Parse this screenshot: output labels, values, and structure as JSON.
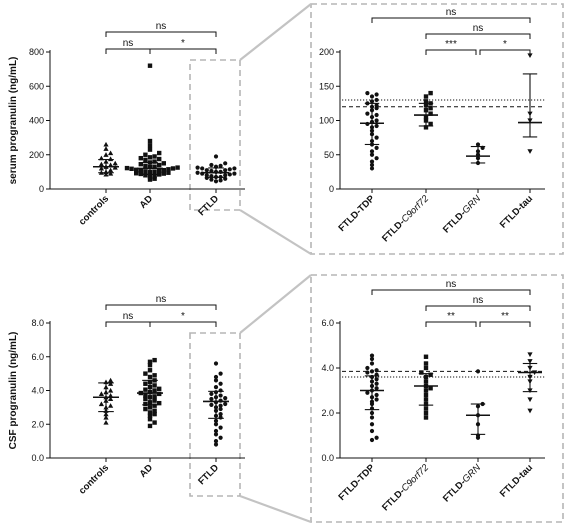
{
  "chart_data": [
    {
      "id": "A",
      "type": "scatter",
      "ylabel": "serum progranulin (ng/mL)",
      "ylim": [
        0,
        800
      ],
      "yticks": [
        0,
        200,
        400,
        600,
        800
      ],
      "categories": [
        "controls",
        "AD",
        "FTLD"
      ],
      "markers": [
        "triangle",
        "square",
        "circle"
      ],
      "stats": [
        {
          "mean": 130,
          "sd_low": 95,
          "sd_high": 172
        },
        {
          "mean": 120,
          "sd_low": 85,
          "sd_high": 155
        },
        {
          "mean": 95,
          "sd_low": 68,
          "sd_high": 123
        }
      ],
      "points": [
        [
          130,
          145,
          160,
          175,
          120,
          110,
          100,
          90,
          180,
          200,
          210,
          235,
          260,
          95,
          85,
          140,
          150,
          125
        ],
        [
          720,
          280,
          255,
          230,
          210,
          200,
          190,
          185,
          180,
          175,
          170,
          160,
          155,
          150,
          145,
          140,
          135,
          130,
          128,
          125,
          122,
          120,
          118,
          115,
          112,
          110,
          108,
          105,
          102,
          100,
          98,
          95,
          92,
          90,
          88,
          85,
          80,
          75,
          70,
          60,
          55
        ],
        [
          190,
          150,
          140,
          135,
          130,
          125,
          120,
          115,
          110,
          105,
          100,
          95,
          90,
          85,
          80,
          75,
          70,
          65,
          60,
          55,
          50,
          45,
          100,
          110,
          120,
          90,
          80,
          70
        ]
      ],
      "brackets": [
        {
          "from": 0,
          "to": 2,
          "label": "ns"
        },
        {
          "from": 0,
          "to": 1,
          "label": "ns"
        },
        {
          "from": 1,
          "to": 2,
          "label": "*"
        }
      ]
    },
    {
      "id": "B",
      "type": "scatter",
      "ylim": [
        0,
        200
      ],
      "yticks": [
        0,
        50,
        100,
        150,
        200
      ],
      "categories": [
        "FTLD-TDP",
        "FTLD-C9orf72",
        "FTLD-GRN",
        "FTLD-tau"
      ],
      "markers": [
        "circle",
        "square",
        "circle",
        "triangle-down"
      ],
      "ref_dashed": 120,
      "ref_dotted": 130,
      "stats": [
        {
          "mean": 96,
          "sd_low": 65,
          "sd_high": 125
        },
        {
          "mean": 108,
          "sd_low": 92,
          "sd_high": 125
        },
        {
          "mean": 48,
          "sd_low": 38,
          "sd_high": 62
        },
        {
          "mean": 97,
          "sd_low": 76,
          "sd_high": 168
        }
      ],
      "points": [
        [
          140,
          135,
          130,
          128,
          125,
          122,
          120,
          118,
          115,
          110,
          108,
          105,
          100,
          98,
          95,
          92,
          90,
          85,
          80,
          75,
          70,
          65,
          60,
          55,
          50,
          45,
          40,
          35,
          30,
          138
        ],
        [
          140,
          135,
          128,
          125,
          122,
          118,
          115,
          110,
          105,
          100,
          95,
          90
        ],
        [
          65,
          60,
          55,
          50,
          45,
          38
        ],
        [
          195,
          110,
          100,
          55
        ]
      ],
      "brackets": [
        {
          "from": 0,
          "to": 3,
          "label": "ns"
        },
        {
          "from": 1,
          "to": 3,
          "label": "ns"
        },
        {
          "from": 1,
          "to": 2,
          "label": "***"
        },
        {
          "from": 2,
          "to": 3,
          "label": "*"
        }
      ]
    },
    {
      "id": "C",
      "type": "scatter",
      "ylabel": "CSF progranulin (ng/mL)",
      "ylim": [
        0,
        8
      ],
      "yticks": [
        0,
        2,
        4,
        6,
        8
      ],
      "ytick_labels": [
        "0.0",
        "2.0",
        "4.0",
        "6.0",
        "8.0"
      ],
      "categories": [
        "controls",
        "AD",
        "FTLD"
      ],
      "markers": [
        "triangle",
        "square",
        "circle"
      ],
      "stats": [
        {
          "mean": 3.6,
          "sd_low": 2.75,
          "sd_high": 4.45
        },
        {
          "mean": 3.85,
          "sd_low": 3.15,
          "sd_high": 4.6
        },
        {
          "mean": 3.35,
          "sd_low": 2.35,
          "sd_high": 3.95
        }
      ],
      "points": [
        [
          4.6,
          4.5,
          4.4,
          4.2,
          4.0,
          3.8,
          3.6,
          3.5,
          3.4,
          3.2,
          3.0,
          2.8,
          2.6,
          2.4,
          2.1,
          3.9,
          3.1,
          3.7
        ],
        [
          5.8,
          5.7,
          5.5,
          5.2,
          5.0,
          4.8,
          4.6,
          4.5,
          4.4,
          4.3,
          4.2,
          4.1,
          4.0,
          3.9,
          3.8,
          3.7,
          3.6,
          3.5,
          3.4,
          3.3,
          3.2,
          3.1,
          3.0,
          2.9,
          2.8,
          2.6,
          2.5,
          2.3,
          2.1,
          1.9,
          4.9,
          3.85,
          4.05,
          3.65,
          3.25,
          2.7
        ],
        [
          5.6,
          5.0,
          4.8,
          4.6,
          4.4,
          4.2,
          4.0,
          3.9,
          3.8,
          3.7,
          3.6,
          3.5,
          3.4,
          3.3,
          3.2,
          3.1,
          3.0,
          2.9,
          2.8,
          2.6,
          2.4,
          2.2,
          2.0,
          1.8,
          1.6,
          1.4,
          1.2,
          1.0,
          0.8,
          3.55,
          3.15,
          2.5
        ]
      ],
      "brackets": [
        {
          "from": 0,
          "to": 2,
          "label": "ns"
        },
        {
          "from": 0,
          "to": 1,
          "label": "ns"
        },
        {
          "from": 1,
          "to": 2,
          "label": "*"
        }
      ]
    },
    {
      "id": "D",
      "type": "scatter",
      "ylim": [
        0,
        6
      ],
      "yticks": [
        0,
        2,
        4,
        6
      ],
      "ytick_labels": [
        "0.0",
        "2.0",
        "4.0",
        "6.0"
      ],
      "categories": [
        "FTLD-TDP",
        "FTLD-C9orf72",
        "FTLD-GRN",
        "FTLD-tau"
      ],
      "markers": [
        "circle",
        "square",
        "circle",
        "triangle-down"
      ],
      "ref_dashed": 3.85,
      "ref_dotted": 3.6,
      "stats": [
        {
          "mean": 3.0,
          "sd_low": 2.15,
          "sd_high": 3.65
        },
        {
          "mean": 3.2,
          "sd_low": 2.35,
          "sd_high": 3.75
        },
        {
          "mean": 1.9,
          "sd_low": 1.05,
          "sd_high": 2.4
        },
        {
          "mean": 3.8,
          "sd_low": 2.95,
          "sd_high": 4.2
        }
      ],
      "points": [
        [
          4.55,
          4.4,
          4.2,
          4.0,
          3.9,
          3.8,
          3.7,
          3.6,
          3.5,
          3.4,
          3.3,
          3.2,
          3.1,
          3.0,
          2.9,
          2.8,
          2.7,
          2.6,
          2.5,
          2.4,
          2.2,
          2.0,
          1.8,
          1.5,
          1.2,
          0.9,
          0.8,
          3.85
        ],
        [
          4.5,
          4.2,
          4.0,
          3.8,
          3.6,
          3.4,
          3.2,
          3.0,
          2.8,
          2.6,
          2.4,
          2.2,
          2.0,
          1.8,
          3.7,
          3.1
        ],
        [
          3.85,
          2.4,
          1.9,
          1.5,
          1.0,
          0.9,
          2.3
        ],
        [
          4.6,
          4.3,
          4.0,
          3.8,
          3.6,
          3.4,
          3.0,
          2.6,
          2.1
        ]
      ],
      "brackets": [
        {
          "from": 0,
          "to": 3,
          "label": "ns"
        },
        {
          "from": 1,
          "to": 3,
          "label": "ns"
        },
        {
          "from": 1,
          "to": 2,
          "label": "**"
        },
        {
          "from": 2,
          "to": 3,
          "label": "**"
        }
      ]
    }
  ]
}
